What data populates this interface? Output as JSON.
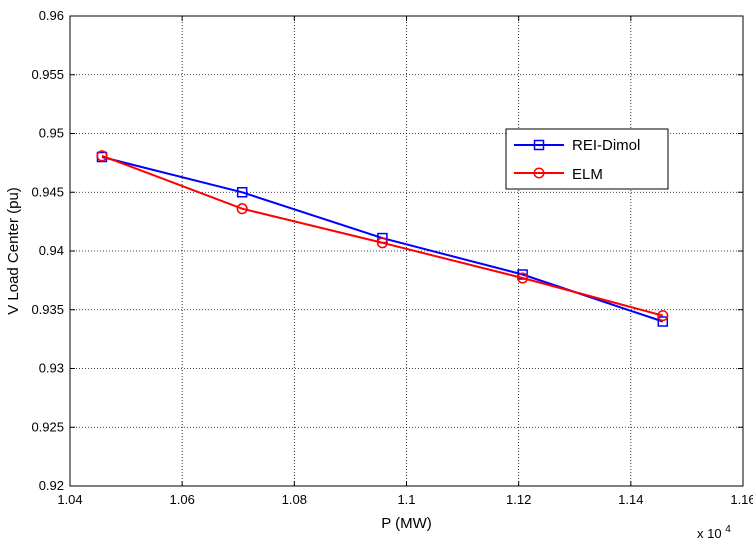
{
  "chart_data": {
    "type": "line",
    "x": [
      10457,
      10707,
      10957,
      11207,
      11457
    ],
    "series": [
      {
        "name": "REI-Dimol",
        "values": [
          0.948,
          0.945,
          0.9411,
          0.938,
          0.934
        ],
        "color": "#0000ff",
        "marker": "square"
      },
      {
        "name": "ELM",
        "values": [
          0.9481,
          0.9436,
          0.9407,
          0.9377,
          0.9345
        ],
        "color": "#ff0000",
        "marker": "circle"
      }
    ],
    "xlabel": "P (MW)",
    "ylabel": "V Load Center (pu)",
    "x_exponent_label": "x 10",
    "x_exponent_power": "4",
    "xlim": [
      10400,
      11600
    ],
    "ylim": [
      0.92,
      0.96
    ],
    "xticks": [
      10400,
      10600,
      10800,
      11000,
      11200,
      11400,
      11600
    ],
    "xtick_labels": [
      "1.04",
      "1.06",
      "1.08",
      "1.1",
      "1.12",
      "1.14",
      "1.16"
    ],
    "yticks": [
      0.92,
      0.925,
      0.93,
      0.935,
      0.94,
      0.945,
      0.95,
      0.955,
      0.96
    ],
    "ytick_labels": [
      "0.92",
      "0.925",
      "0.93",
      "0.935",
      "0.94",
      "0.945",
      "0.95",
      "0.955",
      "0.96"
    ],
    "grid": true,
    "legend_position": "upper-right"
  }
}
